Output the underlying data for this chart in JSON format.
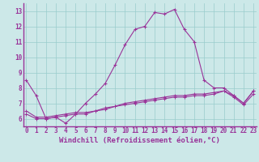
{
  "xlabel": "Windchill (Refroidissement éolien,°C)",
  "background_color": "#cce8e8",
  "line_color": "#993399",
  "grid_color": "#99cccc",
  "border_color": "#993399",
  "x": [
    0,
    1,
    2,
    3,
    4,
    5,
    6,
    7,
    8,
    9,
    10,
    11,
    12,
    13,
    14,
    15,
    16,
    17,
    18,
    19,
    20,
    21,
    22,
    23
  ],
  "line1_y": [
    8.5,
    7.5,
    6.0,
    6.1,
    5.7,
    6.3,
    7.0,
    7.6,
    8.3,
    9.5,
    10.8,
    11.8,
    12.0,
    12.9,
    12.8,
    13.1,
    11.8,
    11.0,
    8.5,
    8.0,
    8.0,
    7.5,
    7.0,
    7.8
  ],
  "line2_y": [
    6.5,
    6.1,
    6.1,
    6.2,
    6.3,
    6.4,
    6.4,
    6.5,
    6.7,
    6.8,
    7.0,
    7.1,
    7.2,
    7.3,
    7.4,
    7.5,
    7.5,
    7.6,
    7.6,
    7.7,
    7.8,
    7.5,
    7.0,
    7.8
  ],
  "line3_y": [
    6.3,
    6.0,
    6.0,
    6.1,
    6.2,
    6.3,
    6.3,
    6.5,
    6.6,
    6.8,
    6.9,
    7.0,
    7.1,
    7.2,
    7.3,
    7.4,
    7.4,
    7.5,
    7.5,
    7.6,
    7.8,
    7.4,
    6.9,
    7.6
  ],
  "ylim": [
    5.5,
    13.5
  ],
  "yticks": [
    6,
    7,
    8,
    9,
    10,
    11,
    12,
    13
  ],
  "xticks": [
    0,
    1,
    2,
    3,
    4,
    5,
    6,
    7,
    8,
    9,
    10,
    11,
    12,
    13,
    14,
    15,
    16,
    17,
    18,
    19,
    20,
    21,
    22,
    23
  ],
  "xlabel_fontsize": 6.5,
  "tick_fontsize": 5.5
}
